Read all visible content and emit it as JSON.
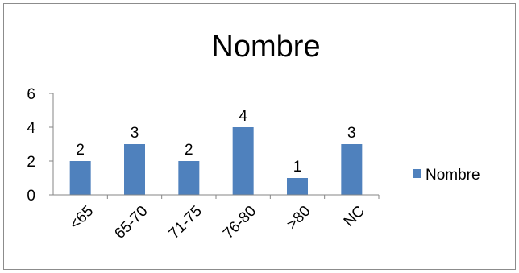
{
  "chart_data": {
    "type": "bar",
    "title": "Nombre",
    "categories": [
      "<65",
      "65-70",
      "71-75",
      "76-80",
      ">80",
      "NC"
    ],
    "series": [
      {
        "name": "Nombre",
        "values": [
          2,
          3,
          2,
          4,
          1,
          3
        ]
      }
    ],
    "ylim": [
      0,
      6
    ],
    "yticks": [
      0,
      2,
      4,
      6
    ],
    "xlabel": "",
    "ylabel": "",
    "grid": false,
    "legend": "right",
    "data_labels": true,
    "colors": {
      "bar": "#4f81bd",
      "axis": "#868686"
    }
  }
}
